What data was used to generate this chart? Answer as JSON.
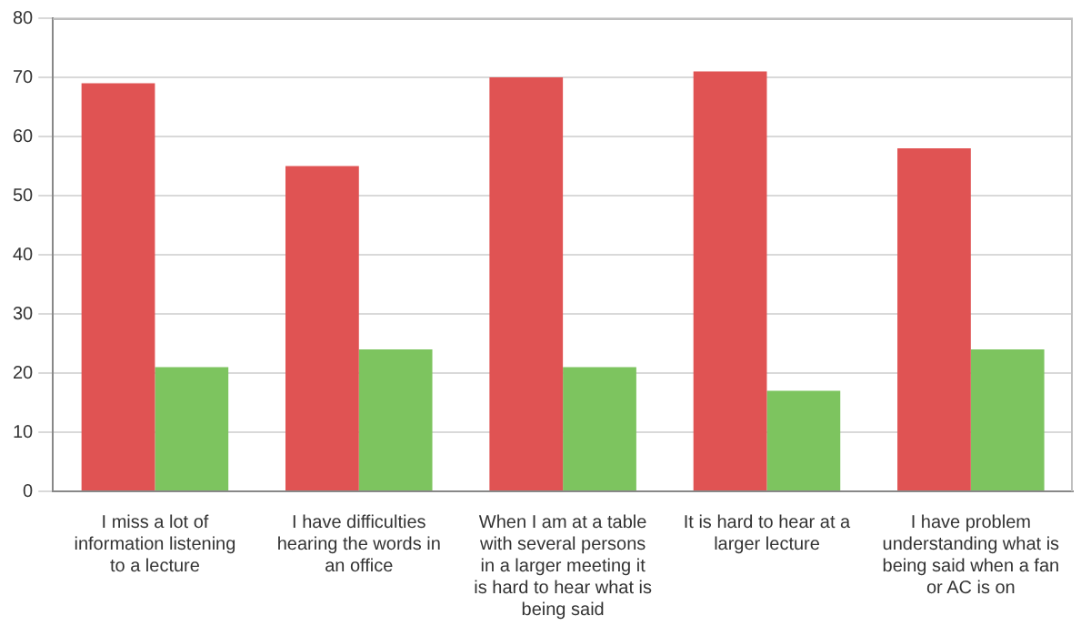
{
  "chart_data": {
    "type": "bar",
    "categories": [
      "I miss a lot of information listening to a lecture",
      "I have difficulties hearing the words in an office",
      "When I am at a table with several persons in a larger meeting it is hard to hear what is being said",
      "It is hard to hear at a larger lecture",
      "I have problem understanding what is being said when a fan or AC is on"
    ],
    "series": [
      {
        "color": "#e05353",
        "values": [
          69,
          55,
          70,
          71,
          58
        ]
      },
      {
        "color": "#7dc45f",
        "values": [
          21,
          24,
          21,
          17,
          24
        ]
      }
    ],
    "ylim": [
      0,
      80
    ],
    "yticks": [
      0,
      10,
      20,
      30,
      40,
      50,
      60,
      70,
      80
    ],
    "grid": "y",
    "legend": false
  }
}
